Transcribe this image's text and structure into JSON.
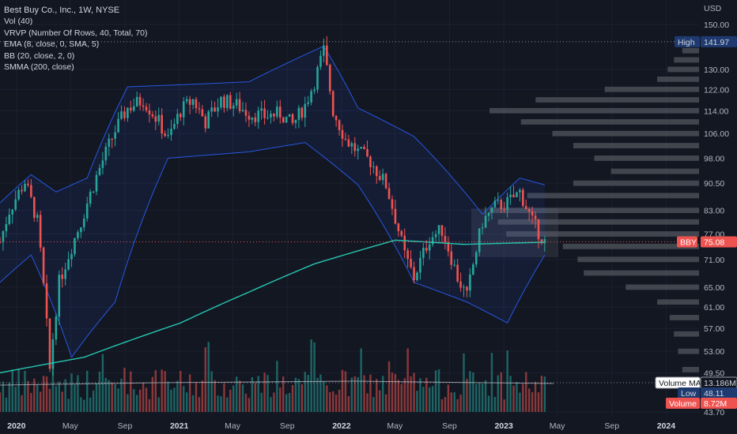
{
  "legend": {
    "symbol": "Best Buy Co., Inc., 1W, NYSE",
    "vol": "Vol (40)",
    "vrvp": "VRVP (Number Of Rows, 40, Total, 70)",
    "ema": "EMA (8, close, 0, SMA, 5)",
    "bb": "BB (20, close, 2, 0)",
    "smma": "SMMA (200, close)"
  },
  "chart_data": {
    "type": "candlestick",
    "currency": "USD",
    "y_axis": {
      "ticks": [
        "150.00",
        "130.00",
        "122.00",
        "114.00",
        "106.00",
        "98.00",
        "90.50",
        "83.00",
        "77.00",
        "71.00",
        "65.00",
        "61.00",
        "57.00",
        "53.00",
        "49.50",
        "43.70"
      ],
      "log_scale": true
    },
    "x_axis": {
      "ticks": [
        "2020",
        "May",
        "Sep",
        "2021",
        "May",
        "Sep",
        "2022",
        "May",
        "Sep",
        "2023",
        "May",
        "Sep",
        "2024"
      ],
      "bold_ticks": [
        "2020",
        "2021",
        "2022",
        "2023",
        "2024"
      ]
    },
    "price_labels": {
      "high_label": "High",
      "high_value": "141.97",
      "symbol_label": "BBY",
      "last_value": "75.08",
      "volume_ma_label": "Volume MA",
      "volume_ma_value": "13.186M",
      "low_label": "Low",
      "low_value": "48.11",
      "volume_label": "Volume",
      "volume_value": "8.72M"
    },
    "key_levels": {
      "high": 141.97,
      "last": 75.08,
      "low": 48.11
    },
    "price_path": [
      {
        "date": "2019-11-25",
        "price": 75
      },
      {
        "date": "2019-12-16",
        "price": 83
      },
      {
        "date": "2020-01-20",
        "price": 91
      },
      {
        "date": "2020-02-17",
        "price": 80
      },
      {
        "date": "2020-03-16",
        "price": 50
      },
      {
        "date": "2020-04-06",
        "price": 66
      },
      {
        "date": "2020-05-25",
        "price": 80
      },
      {
        "date": "2020-06-22",
        "price": 90
      },
      {
        "date": "2020-08-10",
        "price": 107
      },
      {
        "date": "2020-09-07",
        "price": 115
      },
      {
        "date": "2020-10-12",
        "price": 118
      },
      {
        "date": "2020-11-16",
        "price": 110
      },
      {
        "date": "2020-12-07",
        "price": 104
      },
      {
        "date": "2021-01-04",
        "price": 114
      },
      {
        "date": "2021-02-01",
        "price": 118
      },
      {
        "date": "2021-03-01",
        "price": 110
      },
      {
        "date": "2021-04-05",
        "price": 118
      },
      {
        "date": "2021-05-10",
        "price": 116
      },
      {
        "date": "2021-06-07",
        "price": 113
      },
      {
        "date": "2021-07-12",
        "price": 112
      },
      {
        "date": "2021-08-16",
        "price": 113
      },
      {
        "date": "2021-09-13",
        "price": 109
      },
      {
        "date": "2021-10-11",
        "price": 116
      },
      {
        "date": "2021-11-01",
        "price": 125
      },
      {
        "date": "2021-11-22",
        "price": 138
      },
      {
        "date": "2021-12-13",
        "price": 114
      },
      {
        "date": "2022-01-10",
        "price": 104
      },
      {
        "date": "2022-02-07",
        "price": 100
      },
      {
        "date": "2022-03-07",
        "price": 97
      },
      {
        "date": "2022-04-11",
        "price": 90
      },
      {
        "date": "2022-05-23",
        "price": 72
      },
      {
        "date": "2022-06-13",
        "price": 67
      },
      {
        "date": "2022-07-18",
        "price": 76
      },
      {
        "date": "2022-08-15",
        "price": 78
      },
      {
        "date": "2022-09-19",
        "price": 67
      },
      {
        "date": "2022-10-10",
        "price": 63
      },
      {
        "date": "2022-11-14",
        "price": 80
      },
      {
        "date": "2022-12-12",
        "price": 84
      },
      {
        "date": "2023-01-09",
        "price": 85
      },
      {
        "date": "2023-02-06",
        "price": 88
      },
      {
        "date": "2023-03-06",
        "price": 80
      },
      {
        "date": "2023-04-03",
        "price": 75
      }
    ],
    "smma_200": [
      {
        "date": "2019-11-25",
        "price": 49.5
      },
      {
        "date": "2020-06-01",
        "price": 52
      },
      {
        "date": "2021-01-04",
        "price": 58
      },
      {
        "date": "2021-06-07",
        "price": 64
      },
      {
        "date": "2021-11-01",
        "price": 70
      },
      {
        "date": "2022-05-02",
        "price": 75.5
      },
      {
        "date": "2022-10-03",
        "price": 74.5
      },
      {
        "date": "2023-04-03",
        "price": 75
      }
    ],
    "bb_upper": [
      {
        "date": "2019-11-25",
        "price": 85
      },
      {
        "date": "2020-02-03",
        "price": 93
      },
      {
        "date": "2020-03-30",
        "price": 88
      },
      {
        "date": "2020-06-08",
        "price": 92
      },
      {
        "date": "2020-09-07",
        "price": 123
      },
      {
        "date": "2021-02-01",
        "price": 124
      },
      {
        "date": "2021-06-07",
        "price": 125
      },
      {
        "date": "2021-11-22",
        "price": 140
      },
      {
        "date": "2022-02-07",
        "price": 115
      },
      {
        "date": "2022-06-13",
        "price": 105
      },
      {
        "date": "2022-11-14",
        "price": 82
      },
      {
        "date": "2023-02-06",
        "price": 92
      },
      {
        "date": "2023-04-03",
        "price": 90
      }
    ],
    "bb_lower": [
      {
        "date": "2019-11-25",
        "price": 66
      },
      {
        "date": "2020-02-03",
        "price": 72
      },
      {
        "date": "2020-05-04",
        "price": 52
      },
      {
        "date": "2020-08-10",
        "price": 62
      },
      {
        "date": "2020-12-07",
        "price": 98
      },
      {
        "date": "2021-06-07",
        "price": 100
      },
      {
        "date": "2021-10-11",
        "price": 103
      },
      {
        "date": "2022-02-07",
        "price": 90
      },
      {
        "date": "2022-06-13",
        "price": 66
      },
      {
        "date": "2022-10-10",
        "price": 62
      },
      {
        "date": "2023-01-09",
        "price": 58
      },
      {
        "date": "2023-04-03",
        "price": 72
      }
    ],
    "volume_ma": 13.186,
    "volume_profile_rows": [
      {
        "price": 138,
        "rel": 0.08
      },
      {
        "price": 134,
        "rel": 0.12
      },
      {
        "price": 130,
        "rel": 0.15
      },
      {
        "price": 126,
        "rel": 0.2
      },
      {
        "price": 122,
        "rel": 0.45
      },
      {
        "price": 118,
        "rel": 0.78
      },
      {
        "price": 114,
        "rel": 1.0
      },
      {
        "price": 110,
        "rel": 0.85
      },
      {
        "price": 106,
        "rel": 0.7
      },
      {
        "price": 102,
        "rel": 0.6
      },
      {
        "price": 98,
        "rel": 0.5
      },
      {
        "price": 94,
        "rel": 0.42
      },
      {
        "price": 90.5,
        "rel": 0.6
      },
      {
        "price": 87,
        "rel": 0.82
      },
      {
        "price": 83,
        "rel": 1.0
      },
      {
        "price": 80,
        "rel": 0.96
      },
      {
        "price": 77,
        "rel": 0.92
      },
      {
        "price": 74,
        "rel": 0.65
      },
      {
        "price": 71,
        "rel": 0.58
      },
      {
        "price": 68,
        "rel": 0.55
      },
      {
        "price": 65,
        "rel": 0.35
      },
      {
        "price": 62,
        "rel": 0.2
      },
      {
        "price": 59,
        "rel": 0.14
      },
      {
        "price": 56,
        "rel": 0.12
      },
      {
        "price": 53,
        "rel": 0.1
      },
      {
        "price": 50,
        "rel": 0.08
      }
    ],
    "colors": {
      "background": "#131722",
      "up": "#26a69a",
      "down": "#ef5350",
      "bollinger": "#2962ff",
      "smma": "#26c6b0",
      "volume_profile": "#4a4d56",
      "high_label": "#1e3a70",
      "last_label": "#ef5350",
      "grid": "#1c2030",
      "axis_text": "#b2b5be"
    }
  }
}
